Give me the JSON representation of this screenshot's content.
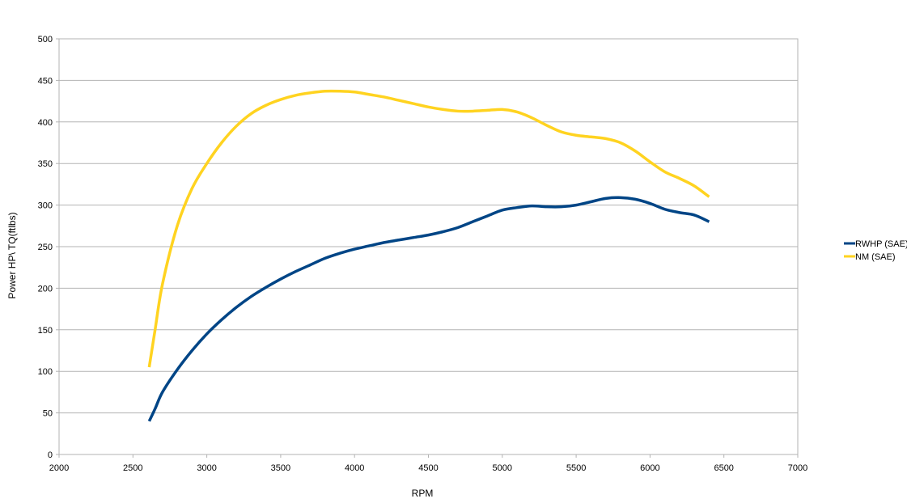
{
  "chart_data": {
    "type": "line",
    "xlabel": "RPM",
    "ylabel": "Power HP\\ TQ(ftlbs)",
    "xlim": [
      2000,
      7000
    ],
    "ylim": [
      0,
      500
    ],
    "x_ticks": [
      2000,
      2500,
      3000,
      3500,
      4000,
      4500,
      5000,
      5500,
      6000,
      6500,
      7000
    ],
    "y_ticks": [
      0,
      50,
      100,
      150,
      200,
      250,
      300,
      350,
      400,
      450,
      500
    ],
    "grid": "horizontal",
    "legend_position": "right",
    "series": [
      {
        "name": "RWHP (SAE)",
        "color": "#004586",
        "x": [
          2610,
          2650,
          2700,
          2800,
          2900,
          3000,
          3100,
          3200,
          3300,
          3400,
          3500,
          3600,
          3700,
          3800,
          3900,
          4000,
          4100,
          4200,
          4300,
          4400,
          4500,
          4600,
          4700,
          4800,
          4900,
          5000,
          5100,
          5200,
          5300,
          5400,
          5500,
          5600,
          5700,
          5800,
          5900,
          6000,
          6100,
          6200,
          6300,
          6400
        ],
        "values": [
          40,
          55,
          75,
          102,
          125,
          145,
          162,
          177,
          190,
          201,
          211,
          220,
          228,
          236,
          242,
          247,
          251,
          255,
          258,
          261,
          264,
          268,
          273,
          280,
          287,
          294,
          297,
          299,
          298,
          298,
          300,
          304,
          308,
          309,
          307,
          302,
          295,
          291,
          288,
          280
        ]
      },
      {
        "name": "NM (SAE)",
        "color": "#ffd320",
        "x": [
          2610,
          2650,
          2700,
          2800,
          2900,
          3000,
          3100,
          3200,
          3300,
          3400,
          3500,
          3600,
          3700,
          3800,
          3900,
          4000,
          4100,
          4200,
          4300,
          4400,
          4500,
          4600,
          4700,
          4800,
          4900,
          5000,
          5100,
          5200,
          5300,
          5400,
          5500,
          5600,
          5700,
          5800,
          5900,
          6000,
          6100,
          6200,
          6300,
          6400
        ],
        "values": [
          105,
          150,
          205,
          275,
          320,
          350,
          375,
          395,
          410,
          420,
          427,
          432,
          435,
          437,
          437,
          436,
          433,
          430,
          426,
          422,
          418,
          415,
          413,
          413,
          414,
          415,
          412,
          405,
          396,
          388,
          384,
          382,
          380,
          375,
          365,
          352,
          340,
          332,
          323,
          310
        ]
      }
    ]
  }
}
